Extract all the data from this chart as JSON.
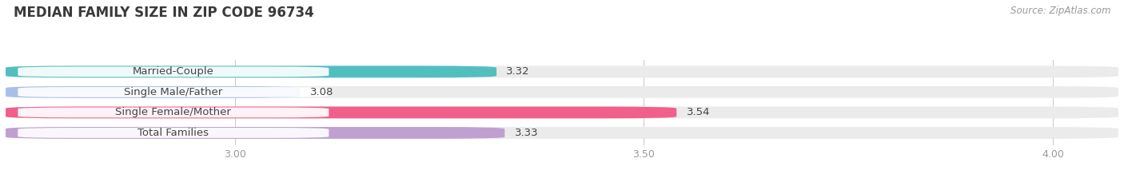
{
  "title": "MEDIAN FAMILY SIZE IN ZIP CODE 96734",
  "source": "Source: ZipAtlas.com",
  "categories": [
    "Married-Couple",
    "Single Male/Father",
    "Single Female/Mother",
    "Total Families"
  ],
  "values": [
    3.32,
    3.08,
    3.54,
    3.33
  ],
  "bar_colors": [
    "#52BFBF",
    "#AABFE8",
    "#F0608A",
    "#C0A0D0"
  ],
  "xlim_min": 2.72,
  "xlim_max": 4.08,
  "xticks": [
    3.0,
    3.5,
    4.0
  ],
  "bar_height": 0.58,
  "label_fontsize": 9.5,
  "value_fontsize": 9.5,
  "title_fontsize": 12,
  "background_color": "#FFFFFF",
  "bar_bg_color": "#EBEBEB",
  "label_bg_color": "#FFFFFF",
  "label_text_color": "#444444",
  "value_text_color": "#444444",
  "grid_color": "#CCCCCC",
  "tick_color": "#999999"
}
